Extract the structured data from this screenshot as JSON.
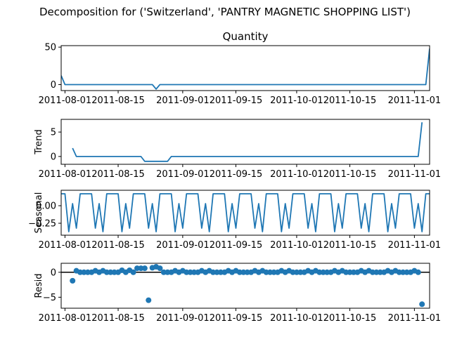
{
  "figure": {
    "suptitle": "Decomposition for ('Switzerland', 'PANTRY MAGNETIC  SHOPPING LIST')",
    "series_color": "#1f77b4"
  },
  "chart_data": [
    {
      "type": "line",
      "title": "Quantity",
      "ylabel": "",
      "xlim": [
        "2011-07-31",
        "2011-11-05"
      ],
      "ylim": [
        -8,
        52
      ],
      "yticks": [
        0,
        50
      ],
      "xticks": [
        "2011-08-01",
        "2011-08-15",
        "2011-09-01",
        "2011-09-15",
        "2011-10-01",
        "2011-10-15",
        "2011-11-01"
      ],
      "points": [
        [
          "2011-07-31",
          12
        ],
        [
          "2011-08-01",
          0
        ],
        [
          "2011-08-24",
          0
        ],
        [
          "2011-08-25",
          -6
        ],
        [
          "2011-08-26",
          0
        ],
        [
          "2011-11-04",
          0
        ],
        [
          "2011-11-05",
          48
        ]
      ]
    },
    {
      "type": "line",
      "title": "",
      "ylabel": "Trend",
      "xlim": [
        "2011-07-31",
        "2011-11-05"
      ],
      "ylim": [
        -1.6,
        7.6
      ],
      "yticks": [
        0,
        5
      ],
      "xticks": [
        "2011-08-01",
        "2011-08-15",
        "2011-09-01",
        "2011-09-15",
        "2011-10-01",
        "2011-10-15",
        "2011-11-01"
      ],
      "points": [
        [
          "2011-08-03",
          1.7
        ],
        [
          "2011-08-04",
          0
        ],
        [
          "2011-08-21",
          0
        ],
        [
          "2011-08-22",
          -1
        ],
        [
          "2011-08-28",
          -1
        ],
        [
          "2011-08-29",
          0
        ],
        [
          "2011-11-02",
          0
        ],
        [
          "2011-11-03",
          7
        ]
      ]
    },
    {
      "type": "line",
      "title": "",
      "ylabel": "Seasonal",
      "xlim": [
        "2011-07-31",
        "2011-11-05"
      ],
      "ylim": [
        -0.42,
        0.22
      ],
      "yticks": [
        0.0,
        -0.25
      ],
      "ytick_labels": [
        "0.00",
        "−0.25"
      ],
      "xticks": [
        "2011-08-01",
        "2011-08-15",
        "2011-09-01",
        "2011-09-15",
        "2011-10-01",
        "2011-10-15",
        "2011-11-01"
      ],
      "start": "2011-07-31",
      "pattern": [
        0.17,
        0.17,
        -0.37,
        0.03,
        -0.32,
        0.17,
        0.17,
        0.17,
        0.17,
        -0.32,
        0.03,
        -0.37,
        0.17,
        0.17
      ],
      "period_days": 7,
      "count": 98
    },
    {
      "type": "scatter",
      "title": "",
      "ylabel": "Resid",
      "xlim": [
        "2011-07-31",
        "2011-11-05"
      ],
      "ylim": [
        -7.2,
        1.8
      ],
      "yticks": [
        0,
        -5
      ],
      "ytick_labels": [
        "0",
        "−5"
      ],
      "xticks": [
        "2011-08-01",
        "2011-08-15",
        "2011-09-01",
        "2011-09-15",
        "2011-10-01",
        "2011-10-15",
        "2011-11-01"
      ],
      "reference_line": 0,
      "start": "2011-08-03",
      "values": [
        -1.7,
        0.3,
        0,
        0,
        0,
        0,
        0.3,
        0,
        0.3,
        0,
        0,
        0,
        0,
        0.4,
        0,
        0.4,
        0,
        0.8,
        0.8,
        0.8,
        -5.6,
        0.9,
        1.1,
        0.8,
        0,
        0,
        0,
        0.3,
        0,
        0.3,
        0,
        0,
        0,
        0,
        0.3,
        0,
        0.3,
        0,
        0,
        0,
        0,
        0.3,
        0,
        0.3,
        0,
        0,
        0,
        0,
        0.3,
        0,
        0.3,
        0,
        0,
        0,
        0,
        0.3,
        0,
        0.3,
        0,
        0,
        0,
        0,
        0.3,
        0,
        0.3,
        0,
        0,
        0,
        0,
        0.3,
        0,
        0.3,
        0,
        0,
        0,
        0,
        0.3,
        0,
        0.3,
        0,
        0,
        0,
        0,
        0.3,
        0,
        0.3,
        0,
        0,
        0,
        0,
        0.3,
        0,
        -6.4
      ]
    }
  ]
}
